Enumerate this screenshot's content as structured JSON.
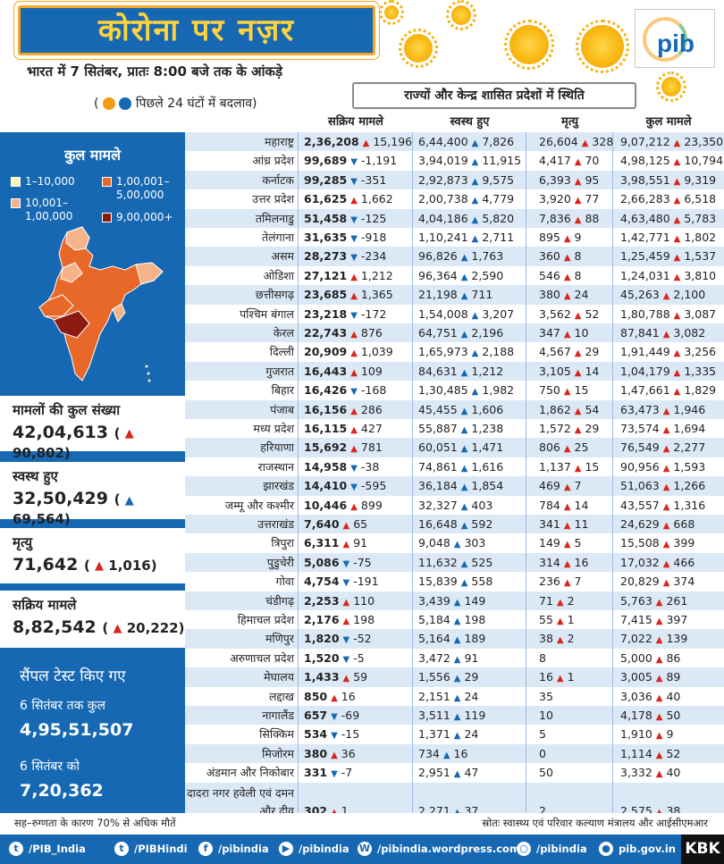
{
  "header": {
    "title": "कोरोना पर नज़र",
    "subtitle": "भारत में 7 सितंबर, प्रातः 8:00 बजे तक के आंकड़े",
    "change_note_open": "(",
    "change_note": "पिछले 24 घंटों में बदलाव)",
    "status_title": "राज्यों और केन्द्र शासित प्रदेशों में स्थिति",
    "logo": "pib"
  },
  "table": {
    "headers": [
      "सक्रिय मामले",
      "स्वस्थ हुए",
      "मृत्यु",
      "कुल मामले"
    ],
    "rows": [
      {
        "state": "महाराष्ट्र",
        "a": "2,36,208",
        "ac": "15,196",
        "ad": "up",
        "r": "6,44,400",
        "rc": "7,826",
        "d": "26,604",
        "dc": "328",
        "t": "9,07,212",
        "tc": "23,350"
      },
      {
        "state": "आंध्र प्रदेश",
        "a": "99,689",
        "ac": "-1,191",
        "ad": "down",
        "r": "3,94,019",
        "rc": "11,915",
        "d": "4,417",
        "dc": "70",
        "t": "4,98,125",
        "tc": "10,794"
      },
      {
        "state": "कर्नाटक",
        "a": "99,285",
        "ac": "-351",
        "ad": "down",
        "r": "2,92,873",
        "rc": "9,575",
        "d": "6,393",
        "dc": "95",
        "t": "3,98,551",
        "tc": "9,319"
      },
      {
        "state": "उत्तर प्रदेश",
        "a": "61,625",
        "ac": "1,662",
        "ad": "up",
        "r": "2,00,738",
        "rc": "4,779",
        "d": "3,920",
        "dc": "77",
        "t": "2,66,283",
        "tc": "6,518"
      },
      {
        "state": "तमिलनाडु",
        "a": "51,458",
        "ac": "-125",
        "ad": "down",
        "r": "4,04,186",
        "rc": "5,820",
        "d": "7,836",
        "dc": "88",
        "t": "4,63,480",
        "tc": "5,783"
      },
      {
        "state": "तेलंगाना",
        "a": "31,635",
        "ac": "-918",
        "ad": "down",
        "r": "1,10,241",
        "rc": "2,711",
        "d": "895",
        "dc": "9",
        "t": "1,42,771",
        "tc": "1,802"
      },
      {
        "state": "असम",
        "a": "28,273",
        "ac": "-234",
        "ad": "down",
        "r": "96,826",
        "rc": "1,763",
        "d": "360",
        "dc": "8",
        "t": "1,25,459",
        "tc": "1,537"
      },
      {
        "state": "ओडिशा",
        "a": "27,121",
        "ac": "1,212",
        "ad": "up",
        "r": "96,364",
        "rc": "2,590",
        "d": "546",
        "dc": "8",
        "t": "1,24,031",
        "tc": "3,810"
      },
      {
        "state": "छत्तीसगढ़",
        "a": "23,685",
        "ac": "1,365",
        "ad": "up",
        "r": "21,198",
        "rc": "711",
        "d": "380",
        "dc": "24",
        "t": "45,263",
        "tc": "2,100"
      },
      {
        "state": "पश्चिम बंगाल",
        "a": "23,218",
        "ac": "-172",
        "ad": "down",
        "r": "1,54,008",
        "rc": "3,207",
        "d": "3,562",
        "dc": "52",
        "t": "1,80,788",
        "tc": "3,087"
      },
      {
        "state": "केरल",
        "a": "22,743",
        "ac": "876",
        "ad": "up",
        "r": "64,751",
        "rc": "2,196",
        "d": "347",
        "dc": "10",
        "t": "87,841",
        "tc": "3,082"
      },
      {
        "state": "दिल्ली",
        "a": "20,909",
        "ac": "1,039",
        "ad": "up",
        "r": "1,65,973",
        "rc": "2,188",
        "d": "4,567",
        "dc": "29",
        "t": "1,91,449",
        "tc": "3,256"
      },
      {
        "state": "गुजरात",
        "a": "16,443",
        "ac": "109",
        "ad": "up",
        "r": "84,631",
        "rc": "1,212",
        "d": "3,105",
        "dc": "14",
        "t": "1,04,179",
        "tc": "1,335"
      },
      {
        "state": "बिहार",
        "a": "16,426",
        "ac": "-168",
        "ad": "down",
        "r": "1,30,485",
        "rc": "1,982",
        "d": "750",
        "dc": "15",
        "t": "1,47,661",
        "tc": "1,829"
      },
      {
        "state": "पंजाब",
        "a": "16,156",
        "ac": "286",
        "ad": "up",
        "r": "45,455",
        "rc": "1,606",
        "d": "1,862",
        "dc": "54",
        "t": "63,473",
        "tc": "1,946"
      },
      {
        "state": "मध्य प्रदेश",
        "a": "16,115",
        "ac": "427",
        "ad": "up",
        "r": "55,887",
        "rc": "1,238",
        "d": "1,572",
        "dc": "29",
        "t": "73,574",
        "tc": "1,694"
      },
      {
        "state": "हरियाणा",
        "a": "15,692",
        "ac": "781",
        "ad": "up",
        "r": "60,051",
        "rc": "1,471",
        "d": "806",
        "dc": "25",
        "t": "76,549",
        "tc": "2,277"
      },
      {
        "state": "राजस्थान",
        "a": "14,958",
        "ac": "-38",
        "ad": "down",
        "r": "74,861",
        "rc": "1,616",
        "d": "1,137",
        "dc": "15",
        "t": "90,956",
        "tc": "1,593"
      },
      {
        "state": "झारखंड",
        "a": "14,410",
        "ac": "-595",
        "ad": "down",
        "r": "36,184",
        "rc": "1,854",
        "d": "469",
        "dc": "7",
        "t": "51,063",
        "tc": "1,266"
      },
      {
        "state": "जम्मू और कश्मीर",
        "a": "10,446",
        "ac": "899",
        "ad": "up",
        "r": "32,327",
        "rc": "403",
        "d": "784",
        "dc": "14",
        "t": "43,557",
        "tc": "1,316"
      },
      {
        "state": "उत्तराखंड",
        "a": "7,640",
        "ac": "65",
        "ad": "up",
        "r": "16,648",
        "rc": "592",
        "d": "341",
        "dc": "11",
        "t": "24,629",
        "tc": "668"
      },
      {
        "state": "त्रिपुरा",
        "a": "6,311",
        "ac": "91",
        "ad": "up",
        "r": "9,048",
        "rc": "303",
        "d": "149",
        "dc": "5",
        "t": "15,508",
        "tc": "399"
      },
      {
        "state": "पुडुचेरी",
        "a": "5,086",
        "ac": "-75",
        "ad": "down",
        "r": "11,632",
        "rc": "525",
        "d": "314",
        "dc": "16",
        "t": "17,032",
        "tc": "466"
      },
      {
        "state": "गोवा",
        "a": "4,754",
        "ac": "-191",
        "ad": "down",
        "r": "15,839",
        "rc": "558",
        "d": "236",
        "dc": "7",
        "t": "20,829",
        "tc": "374"
      },
      {
        "state": "चंडीगढ़",
        "a": "2,253",
        "ac": "110",
        "ad": "up",
        "r": "3,439",
        "rc": "149",
        "d": "71",
        "dc": "2",
        "t": "5,763",
        "tc": "261"
      },
      {
        "state": "हिमाचल प्रदेश",
        "a": "2,176",
        "ac": "198",
        "ad": "up",
        "r": "5,184",
        "rc": "198",
        "d": "55",
        "dc": "1",
        "t": "7,415",
        "tc": "397"
      },
      {
        "state": "मणिपुर",
        "a": "1,820",
        "ac": "-52",
        "ad": "down",
        "r": "5,164",
        "rc": "189",
        "d": "38",
        "dc": "2",
        "t": "7,022",
        "tc": "139"
      },
      {
        "state": "अरुणाचल प्रदेश",
        "a": "1,520",
        "ac": "-5",
        "ad": "down",
        "r": "3,472",
        "rc": "91",
        "d": "8",
        "dc": "",
        "t": "5,000",
        "tc": "86"
      },
      {
        "state": "मेघालय",
        "a": "1,433",
        "ac": "59",
        "ad": "up",
        "r": "1,556",
        "rc": "29",
        "d": "16",
        "dc": "1",
        "t": "3,005",
        "tc": "89"
      },
      {
        "state": "लद्दाख",
        "a": "850",
        "ac": "16",
        "ad": "up",
        "r": "2,151",
        "rc": "24",
        "d": "35",
        "dc": "",
        "t": "3,036",
        "tc": "40"
      },
      {
        "state": "नागालैंड",
        "a": "657",
        "ac": "-69",
        "ad": "down",
        "r": "3,511",
        "rc": "119",
        "d": "10",
        "dc": "",
        "t": "4,178",
        "tc": "50"
      },
      {
        "state": "सिक्किम",
        "a": "534",
        "ac": "-15",
        "ad": "down",
        "r": "1,371",
        "rc": "24",
        "d": "5",
        "dc": "",
        "t": "1,910",
        "tc": "9"
      },
      {
        "state": "मिजोरम",
        "a": "380",
        "ac": "36",
        "ad": "up",
        "r": "734",
        "rc": "16",
        "d": "0",
        "dc": "",
        "t": "1,114",
        "tc": "52"
      },
      {
        "state": "अंडमान और निकोबार",
        "a": "331",
        "ac": "-7",
        "ad": "down",
        "r": "2,951",
        "rc": "47",
        "d": "50",
        "dc": "",
        "t": "3,332",
        "tc": "40"
      },
      {
        "state": "दादरा नगर हवेली एवं दमन और दीव",
        "a": "302",
        "ac": "1",
        "ad": "up",
        "r": "2,271",
        "rc": "37",
        "d": "2",
        "dc": "",
        "t": "2,575",
        "tc": "38"
      }
    ]
  },
  "left": {
    "map_title": "कुल मामले",
    "legend": [
      {
        "label": "1–10,000",
        "color": "#fdf1b6"
      },
      {
        "label": "10,001–",
        "label2": "1,00,000",
        "color": "#f6b38a"
      },
      {
        "label": "1,00,001–",
        "label2": "5,00,000",
        "color": "#e8682a"
      },
      {
        "label": "9,00,000+",
        "color": "#8b1a10"
      }
    ],
    "total": {
      "label": "मामलों की कुल संख्या",
      "value": "42,04,613",
      "change": "90,802"
    },
    "recovered": {
      "label": "स्वस्थ हुए",
      "value": "32,50,429",
      "change": "69,564"
    },
    "deaths": {
      "label": "मृत्यु",
      "value": "71,642",
      "change": "1,016"
    },
    "active": {
      "label": "सक्रिय मामले",
      "value": "8,82,542",
      "change": "20,222"
    },
    "samples": {
      "title": "सैंपल टेस्ट किए गए",
      "label1": "6 सितंबर तक कुल",
      "value1": "4,95,51,507",
      "label2": "6 सितंबर को",
      "value2": "7,20,362"
    }
  },
  "notes": {
    "left": "सह–रुग्णता के कारण 70% से अधिक मौतें",
    "right": "स्रोतः स्वास्थ्य एवं परिवार कल्याण मंत्रालय और आईसीएमआर"
  },
  "footer": {
    "items": [
      {
        "icon": "twitter-icon",
        "text": "/PIB_India"
      },
      {
        "icon": "twitter-icon",
        "text": "/PIBHindi"
      },
      {
        "icon": "facebook-icon",
        "text": "/pibindia"
      },
      {
        "icon": "youtube-icon",
        "text": "/pibindia"
      },
      {
        "icon": "wordpress-icon",
        "text": "/pibindia.wordpress.com"
      },
      {
        "icon": "instagram-icon",
        "text": "/pibindia"
      },
      {
        "icon": "web-icon",
        "text": "pib.gov.in"
      }
    ],
    "badge": "KBK"
  }
}
